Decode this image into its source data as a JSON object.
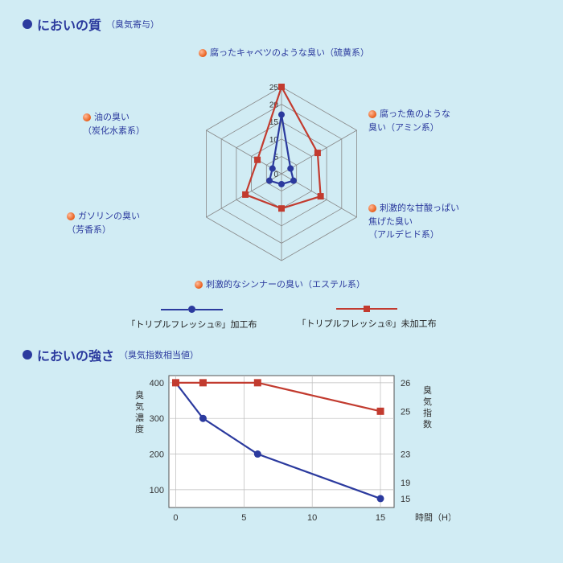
{
  "section1": {
    "title": "においの質",
    "subtitle": "（臭気寄与）",
    "radar": {
      "type": "radar",
      "axes": [
        {
          "l1": "腐ったキャベツのような臭い（硫黄系）",
          "l2": ""
        },
        {
          "l1": "腐った魚のような",
          "l2": "臭い（アミン系）"
        },
        {
          "l1": "刺激的な甘酸っぱい",
          "l2": "焦げた臭い",
          "l3": "（アルデヒド系）"
        },
        {
          "l1": "刺激的なシンナーの臭い（エステル系）",
          "l2": ""
        },
        {
          "l1": "ガソリンの臭い",
          "l2": "（芳香系）"
        },
        {
          "l1": "油の臭い",
          "l2": "（炭化水素系）"
        }
      ],
      "rings": [
        5,
        10,
        15,
        20,
        25
      ],
      "max": 25,
      "series": [
        {
          "name": "「トリプルフレッシュ®」加工布",
          "color": "#2b3a9e",
          "marker": "circle",
          "values": [
            17,
            3,
            4,
            3,
            4,
            3
          ]
        },
        {
          "name": "「トリプルフレッシュ®」未加工布",
          "color": "#c23b2f",
          "marker": "square",
          "values": [
            25,
            12,
            13,
            10,
            12,
            8
          ]
        }
      ],
      "grid_color": "#888888",
      "background": "#d1ecf4"
    }
  },
  "section2": {
    "title": "においの強さ",
    "subtitle": "（臭気指数相当値）",
    "line": {
      "type": "line-dual-axis",
      "xlabel": "時間（H）",
      "y1label": "臭気濃度",
      "y2label": "臭気指数",
      "x_ticks": [
        0,
        5,
        10,
        15
      ],
      "y1_ticks": [
        100,
        200,
        300,
        400
      ],
      "y1_lim": [
        50,
        420
      ],
      "x_lim": [
        -0.5,
        16
      ],
      "series": [
        {
          "color": "#2b3a9e",
          "marker": "circle",
          "points": [
            [
              0,
              400
            ],
            [
              2,
              300
            ],
            [
              6,
              200
            ],
            [
              15,
              75
            ]
          ],
          "y2labels": {
            "0": "",
            "2": "",
            "6": "23",
            "15": "15"
          }
        },
        {
          "color": "#c23b2f",
          "marker": "square",
          "points": [
            [
              0,
              400
            ],
            [
              2,
              400
            ],
            [
              6,
              400
            ],
            [
              15,
              320
            ]
          ],
          "y2labels": {
            "0": "26",
            "15": "25"
          }
        }
      ],
      "y2_annotations": [
        {
          "y": 400,
          "text": "26"
        },
        {
          "y": 320,
          "text": "25"
        },
        {
          "y": 200,
          "text": "23"
        },
        {
          "y": 120,
          "text": "19"
        },
        {
          "y": 75,
          "text": "15"
        }
      ],
      "grid_color": "#bbbbbb",
      "plot_bg": "#ffffff",
      "line_width": 2.2
    }
  }
}
